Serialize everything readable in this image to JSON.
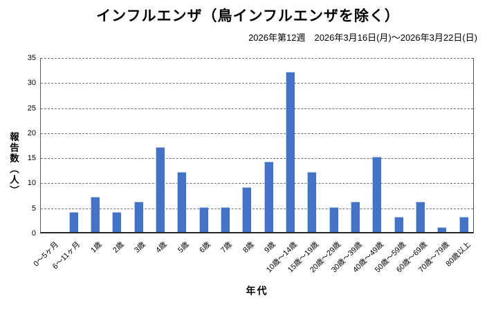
{
  "chart_data": {
    "type": "bar",
    "title": "インフルエンザ（鳥インフルエンザを除く）",
    "subtitle": "2026年第12週　2026年3月16日(月)～2026年3月22日(日)",
    "xlabel": "年代",
    "ylabel": "報告数（人）",
    "categories": [
      "0～5ヶ月",
      "6～11ヶ月",
      "1歳",
      "2歳",
      "3歳",
      "4歳",
      "5歳",
      "6歳",
      "7歳",
      "8歳",
      "9歳",
      "10歳～14歳",
      "15歳～19歳",
      "20歳～29歳",
      "30歳～39歳",
      "40歳～49歳",
      "50歳～59歳",
      "60歳～69歳",
      "70歳～79歳",
      "80歳以上"
    ],
    "values": [
      0,
      4,
      7,
      4,
      6,
      17,
      12,
      5,
      5,
      9,
      14,
      32,
      12,
      5,
      6,
      15,
      3,
      6,
      1,
      3
    ],
    "ylim": [
      0,
      35
    ],
    "ytick_step": 5,
    "grid": "horizontal-dashed",
    "legend": "none",
    "bar_color": "#4472C4",
    "bar_highlight_color": "#b7cbec",
    "gridline_color": "#6e6e6e",
    "axis_color": "#595959",
    "text_color": "#000000"
  }
}
